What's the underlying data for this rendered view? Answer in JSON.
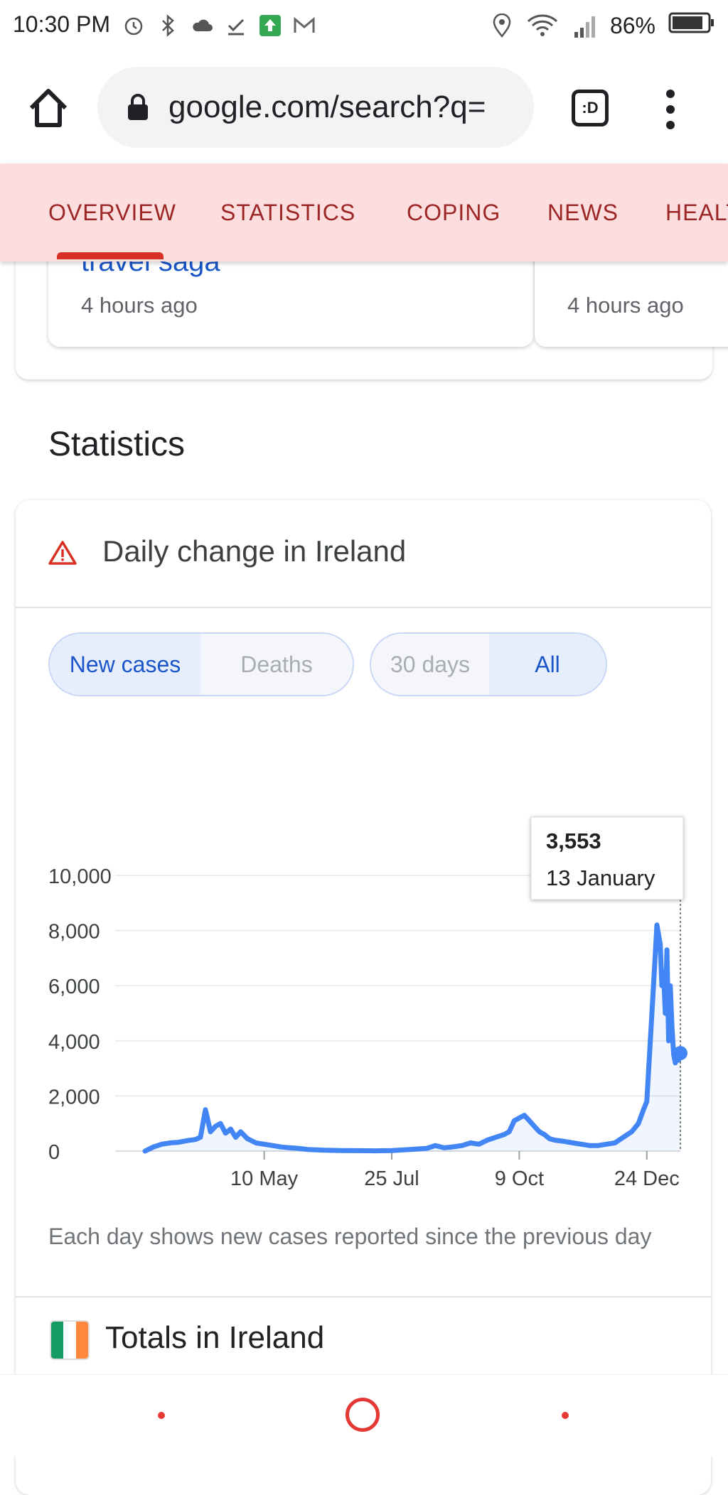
{
  "status_bar": {
    "time": "10:30 PM",
    "battery": "86%",
    "network": "4G"
  },
  "browser": {
    "url": "google.com/search?q=",
    "tab_label": ":D"
  },
  "tabs": [
    {
      "label": "OVERVIEW",
      "active": true
    },
    {
      "label": "STATISTICS"
    },
    {
      "label": "COPING"
    },
    {
      "label": "NEWS"
    },
    {
      "label": "HEALT"
    }
  ],
  "news": [
    {
      "title": "travel saga",
      "time": "4 hours ago"
    },
    {
      "time": "4 hours ago"
    }
  ],
  "stats_heading": "Statistics",
  "card": {
    "title": "Daily change in Ireland",
    "toggle_metric": [
      {
        "label": "New cases",
        "active": true
      },
      {
        "label": "Deaths",
        "active": false
      }
    ],
    "toggle_range": [
      {
        "label": "30 days",
        "active": false
      },
      {
        "label": "All",
        "active": true
      }
    ],
    "caption": "Each day shows new cases reported since the previous day",
    "totals_title": "Totals in Ireland"
  },
  "chart_data": {
    "type": "line",
    "color": "#4285f4",
    "y_ticks": [
      "0",
      "2,000",
      "4,000",
      "6,000",
      "8,000",
      "10,000"
    ],
    "ylim": [
      0,
      10000
    ],
    "x_ticks": [
      "10 May",
      "25 Jul",
      "9 Oct",
      "24 Dec"
    ],
    "tooltip": {
      "value": "3,553",
      "date": "13 January"
    },
    "x": [
      "29 Feb",
      "5 Mar",
      "10 Mar",
      "15 Mar",
      "20 Mar",
      "25 Mar",
      "30 Mar",
      "2 Apr",
      "5 Apr",
      "8 Apr",
      "11 Apr",
      "14 Apr",
      "17 Apr",
      "20 Apr",
      "23 Apr",
      "26 Apr",
      "30 Apr",
      "5 May",
      "10 May",
      "15 May",
      "20 May",
      "25 May",
      "30 May",
      "5 Jun",
      "15 Jun",
      "25 Jun",
      "5 Jul",
      "15 Jul",
      "25 Jul",
      "5 Aug",
      "15 Aug",
      "20 Aug",
      "25 Aug",
      "30 Aug",
      "5 Sep",
      "10 Sep",
      "15 Sep",
      "20 Sep",
      "25 Sep",
      "30 Sep",
      "3 Oct",
      "6 Oct",
      "9 Oct",
      "12 Oct",
      "15 Oct",
      "18 Oct",
      "21 Oct",
      "24 Oct",
      "27 Oct",
      "30 Oct",
      "5 Nov",
      "10 Nov",
      "15 Nov",
      "20 Nov",
      "25 Nov",
      "30 Nov",
      "5 Dec",
      "10 Dec",
      "15 Dec",
      "19 Dec",
      "22 Dec",
      "24 Dec",
      "26 Dec",
      "28 Dec",
      "30 Dec",
      "1 Jan",
      "2 Jan",
      "3 Jan",
      "4 Jan",
      "5 Jan",
      "6 Jan",
      "7 Jan",
      "8 Jan",
      "9 Jan",
      "10 Jan",
      "11 Jan",
      "12 Jan",
      "13 Jan"
    ],
    "y": [
      0,
      150,
      250,
      300,
      320,
      380,
      420,
      500,
      1500,
      700,
      900,
      1000,
      650,
      800,
      500,
      700,
      450,
      300,
      250,
      200,
      150,
      120,
      100,
      60,
      30,
      20,
      15,
      10,
      20,
      60,
      100,
      200,
      120,
      150,
      200,
      300,
      250,
      400,
      500,
      600,
      700,
      1100,
      1200,
      1300,
      1100,
      900,
      700,
      600,
      450,
      400,
      350,
      300,
      250,
      200,
      200,
      250,
      300,
      500,
      700,
      1000,
      1500,
      1800,
      3900,
      6000,
      8200,
      7500,
      6000,
      6500,
      5000,
      7300,
      4000,
      6000,
      4500,
      3500,
      3200,
      3600,
      3300,
      3553
    ]
  }
}
